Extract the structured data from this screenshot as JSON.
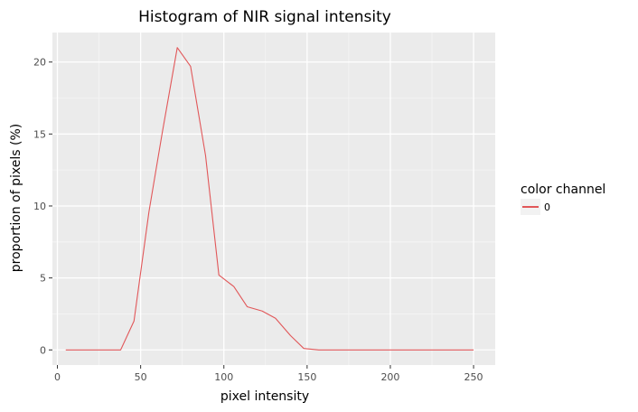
{
  "chart_data": {
    "type": "line",
    "title": "Histogram of NIR signal intensity",
    "xlabel": "pixel intensity",
    "ylabel": "proportion of pixels (%)",
    "xlim": [
      -3,
      263
    ],
    "ylim": [
      -1.05,
      22.05
    ],
    "x_ticks": [
      0,
      50,
      100,
      150,
      200,
      250
    ],
    "y_ticks": [
      0,
      5,
      10,
      15,
      20
    ],
    "grid": true,
    "legend": {
      "title": "color channel",
      "position": "right",
      "entries": [
        "0"
      ]
    },
    "series": [
      {
        "name": "0",
        "color": "#e15759",
        "x": [
          5,
          13,
          21,
          30,
          38,
          46,
          55,
          63,
          72,
          80,
          89,
          97,
          106,
          114,
          123,
          131,
          140,
          148,
          157,
          165,
          174,
          182,
          190,
          199,
          207,
          216,
          224,
          233,
          241,
          250
        ],
        "y": [
          0,
          0,
          0,
          0,
          0,
          2.0,
          9.6,
          15.1,
          21.0,
          19.7,
          13.5,
          5.2,
          4.4,
          3.0,
          2.7,
          2.2,
          1.0,
          0.1,
          0,
          0,
          0,
          0,
          0,
          0,
          0,
          0,
          0,
          0,
          0,
          0
        ]
      }
    ]
  }
}
